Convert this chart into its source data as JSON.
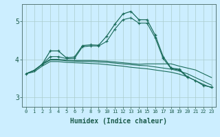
{
  "xlabel": "Humidex (Indice chaleur)",
  "bg_color": "#cceeff",
  "grid_color": "#aacccc",
  "line_color": "#1a6b5a",
  "x_ticks": [
    0,
    1,
    2,
    3,
    4,
    5,
    6,
    7,
    8,
    9,
    10,
    11,
    12,
    13,
    14,
    15,
    16,
    17,
    18,
    19,
    20,
    21,
    22,
    23
  ],
  "ylim": [
    2.75,
    5.45
  ],
  "yticks": [
    3,
    4,
    5
  ],
  "line1_x": [
    0,
    1,
    2,
    3,
    4,
    5,
    6,
    7,
    8,
    9,
    10,
    11,
    12,
    13,
    14,
    15,
    16,
    17,
    18,
    19,
    20,
    21,
    22,
    23
  ],
  "line1_y": [
    3.62,
    3.71,
    3.87,
    4.22,
    4.22,
    4.04,
    4.06,
    4.36,
    4.38,
    4.37,
    4.61,
    4.92,
    5.19,
    5.26,
    5.04,
    5.04,
    4.64,
    4.07,
    3.77,
    3.74,
    3.54,
    3.44,
    3.31,
    3.27
  ],
  "line2_x": [
    2,
    3,
    4,
    5,
    6,
    7,
    8,
    9,
    10,
    11,
    12,
    13,
    14,
    15,
    16,
    17,
    18,
    19,
    20
  ],
  "line2_y": [
    3.87,
    4.07,
    4.07,
    4.02,
    4.02,
    4.33,
    4.35,
    4.35,
    4.47,
    4.79,
    5.04,
    5.09,
    4.95,
    4.95,
    4.57,
    4.02,
    3.75,
    3.72,
    3.52
  ],
  "line3_x": [
    0,
    1,
    2,
    3,
    4,
    5,
    6,
    7,
    8,
    9,
    10,
    11,
    12,
    13,
    14,
    15,
    16,
    17,
    18,
    19,
    20,
    21,
    22,
    23
  ],
  "line3_y": [
    3.62,
    3.71,
    3.87,
    4.0,
    4.0,
    3.98,
    3.97,
    3.97,
    3.97,
    3.96,
    3.95,
    3.93,
    3.91,
    3.89,
    3.87,
    3.88,
    3.88,
    3.88,
    3.88,
    3.82,
    3.77,
    3.72,
    3.62,
    3.52
  ],
  "line4_x": [
    0,
    1,
    2,
    3,
    4,
    5,
    6,
    7,
    8,
    9,
    10,
    11,
    12,
    13,
    14,
    15,
    16,
    17,
    18,
    19,
    20,
    21,
    22,
    23
  ],
  "line4_y": [
    3.62,
    3.7,
    3.86,
    3.98,
    3.98,
    3.96,
    3.95,
    3.94,
    3.94,
    3.93,
    3.92,
    3.9,
    3.88,
    3.86,
    3.84,
    3.83,
    3.8,
    3.77,
    3.74,
    3.69,
    3.62,
    3.52,
    3.42,
    3.32
  ],
  "line5_x": [
    0,
    1,
    2,
    3,
    4,
    5,
    6,
    7,
    8,
    9,
    10,
    11,
    12,
    13,
    14,
    15,
    16,
    17,
    18,
    19,
    20,
    21,
    22,
    23
  ],
  "line5_y": [
    3.62,
    3.67,
    3.82,
    3.94,
    3.94,
    3.92,
    3.91,
    3.9,
    3.89,
    3.88,
    3.86,
    3.84,
    3.82,
    3.79,
    3.77,
    3.75,
    3.72,
    3.69,
    3.66,
    3.61,
    3.54,
    3.44,
    3.34,
    3.25
  ]
}
